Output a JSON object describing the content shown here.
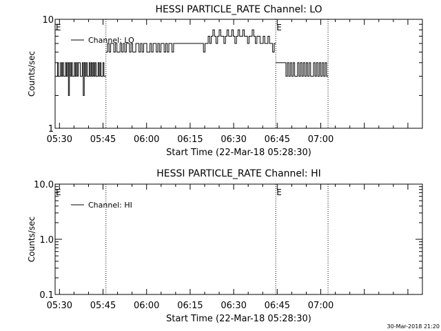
{
  "footer": {
    "stamp": "30-Mar-2018 21:20"
  },
  "chart_data": [
    {
      "type": "line",
      "title": "HESSI PARTICLE_RATE Channel: LO",
      "xlabel": "Start Time (22-Mar-18 05:28:30)",
      "ylabel": "Counts/sec",
      "x_ticks": [
        "05:30",
        "05:45",
        "06:00",
        "06:15",
        "06:30",
        "06:45",
        "07:00"
      ],
      "y_ticks": [
        "10",
        "1"
      ],
      "y_scale": "log",
      "ylim": [
        1,
        10
      ],
      "xlim": [
        "05:28:30",
        "07:35:00"
      ],
      "legend": "Channel: LO",
      "legend_position": "top-left",
      "event_markers": [
        {
          "time": "05:46:00",
          "label": ""
        },
        {
          "time": "06:44:30",
          "label": "E"
        },
        {
          "time": "07:02:30",
          "label": ""
        }
      ],
      "segment_marker_label": "E",
      "series": [
        {
          "name": "Channel: LO",
          "segments": [
            {
              "t_start": "05:29:00",
              "t_end": "05:46:00",
              "values": [
                3,
                4,
                3,
                3,
                4,
                3,
                4,
                3,
                3,
                4,
                3,
                4,
                2,
                4,
                3,
                4,
                3,
                3,
                4,
                3,
                4,
                3,
                4,
                4,
                3,
                3,
                4,
                2,
                4,
                3,
                4,
                3,
                3,
                4,
                3,
                4,
                3,
                4,
                3,
                4,
                3,
                3,
                4,
                3,
                4,
                3,
                3,
                4,
                3,
                3
              ]
            },
            {
              "t_start": "05:46:00",
              "t_end": "06:44:30",
              "values": [
                5,
                6,
                5,
                6,
                6,
                5,
                6,
                5,
                5,
                6,
                5,
                6,
                5,
                6,
                6,
                5,
                6,
                5,
                5,
                6,
                6,
                5,
                6,
                5,
                6,
                6,
                5,
                5,
                6,
                5,
                6,
                6,
                5,
                6,
                5,
                6,
                6,
                5,
                6,
                5,
                6,
                6,
                5,
                6,
                6,
                6,
                6,
                6,
                6,
                6,
                6,
                6,
                6,
                6,
                6,
                6,
                6,
                6,
                6,
                6,
                6,
                6,
                5,
                6,
                6,
                7,
                6,
                7,
                8,
                7,
                6,
                7,
                8,
                7,
                7,
                6,
                7,
                8,
                7,
                7,
                8,
                7,
                6,
                7,
                8,
                7,
                7,
                8,
                7,
                7,
                6,
                7,
                7,
                8,
                7,
                6,
                7,
                7,
                6,
                6,
                7,
                6,
                6,
                7,
                6,
                6,
                5,
                6
              ]
            },
            {
              "t_start": "06:44:30",
              "t_end": "07:02:30",
              "values": [
                4,
                4,
                4,
                4,
                4,
                4,
                4,
                3,
                4,
                3,
                4,
                3,
                4,
                3,
                3,
                4,
                3,
                4,
                3,
                4,
                3,
                4,
                3,
                4,
                3,
                3,
                4,
                3,
                4,
                3,
                4,
                3,
                4,
                3,
                4,
                3
              ]
            }
          ]
        }
      ]
    },
    {
      "type": "line",
      "title": "HESSI PARTICLE_RATE Channel: HI",
      "xlabel": "Start Time (22-Mar-18 05:28:30)",
      "ylabel": "Counts/sec",
      "x_ticks": [
        "05:30",
        "05:45",
        "06:00",
        "06:15",
        "06:30",
        "06:45",
        "07:00"
      ],
      "y_ticks": [
        "10.0",
        "1.0",
        "0.1"
      ],
      "y_scale": "log",
      "ylim": [
        0.1,
        10
      ],
      "xlim": [
        "05:28:30",
        "07:35:00"
      ],
      "legend": "Channel: HI",
      "legend_position": "top-left",
      "event_markers": [
        {
          "time": "05:46:00",
          "label": ""
        },
        {
          "time": "06:44:30",
          "label": "E"
        },
        {
          "time": "07:02:30",
          "label": ""
        }
      ],
      "segment_marker_label": "E",
      "series": [
        {
          "name": "Channel: HI",
          "segments": []
        }
      ]
    }
  ]
}
